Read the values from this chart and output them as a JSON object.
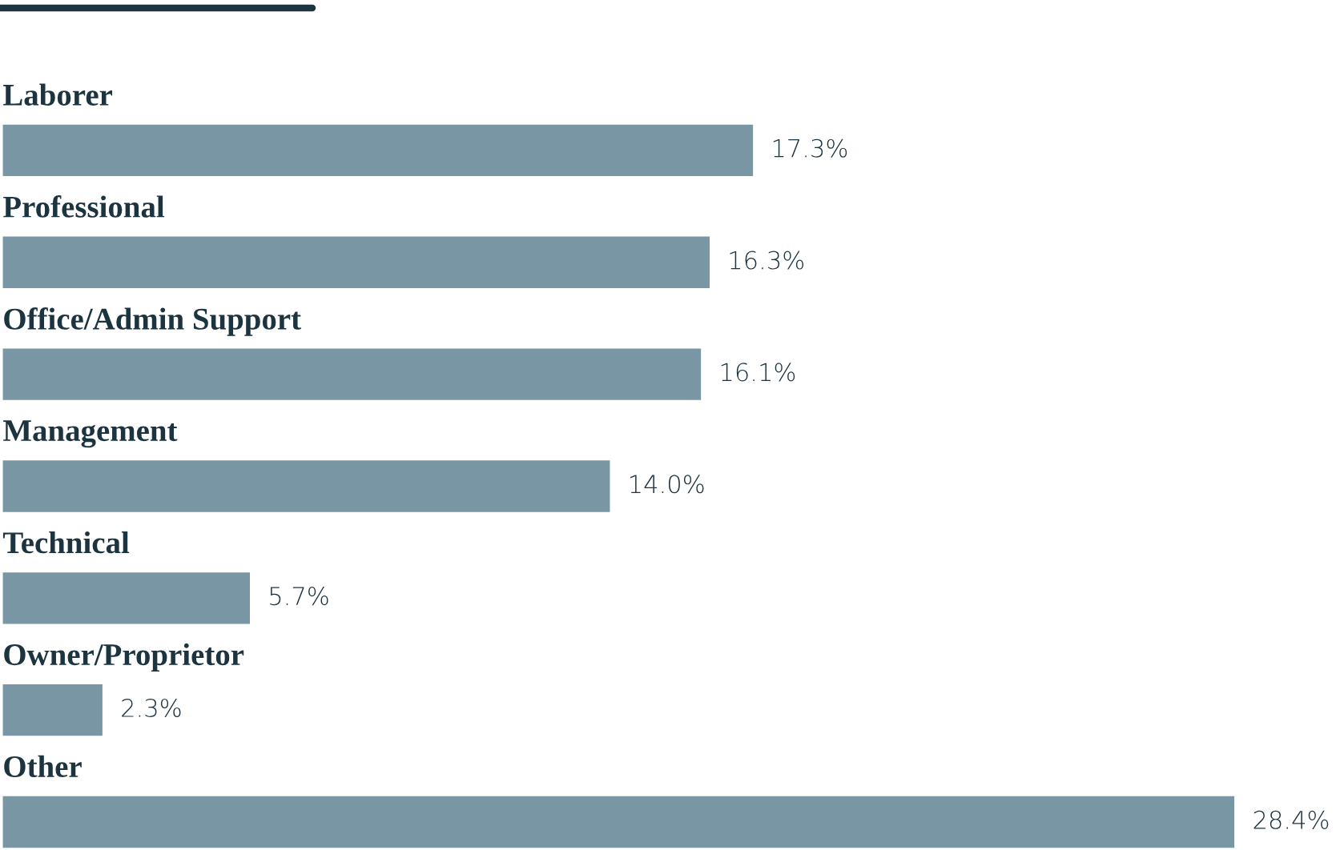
{
  "chart_data": {
    "type": "bar",
    "orientation": "horizontal",
    "categories": [
      "Laborer",
      "Professional",
      "Office/Admin Support",
      "Management",
      "Technical",
      "Owner/Proprietor",
      "Other"
    ],
    "values": [
      17.3,
      16.3,
      16.1,
      14.0,
      5.7,
      2.3,
      28.4
    ],
    "value_labels": [
      "17.3%",
      "16.3%",
      "16.1%",
      "14.0%",
      "5.7%",
      "2.3%",
      "28.4%"
    ],
    "color": "#7896a3"
  }
}
